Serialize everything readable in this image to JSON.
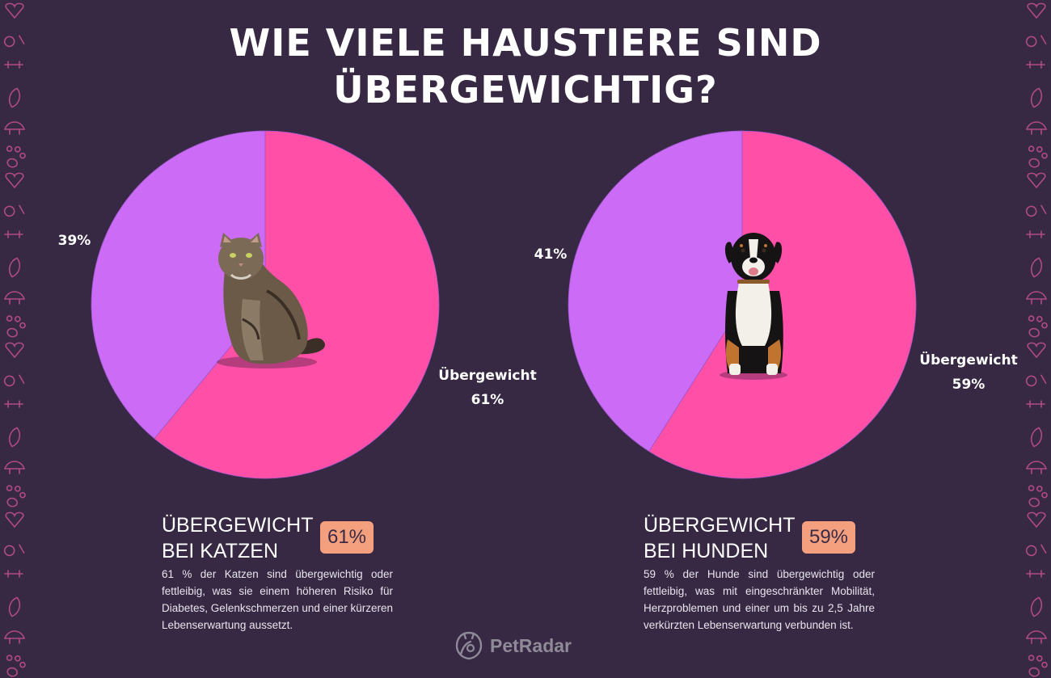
{
  "title": {
    "line1": "WIE VIELE HAUSTIERE SIND",
    "line2": "ÜBERGEWICHTIG?"
  },
  "colors": {
    "overweight": "#ff4fa7",
    "normal": "#cc6bf5",
    "badge": "#f4a07f",
    "background": "#372844"
  },
  "chart_data": [
    {
      "type": "pie",
      "slices": [
        {
          "label": "Übergewicht",
          "value": 61,
          "value_label": "61%",
          "color": "#ff4fa7"
        },
        {
          "label": "",
          "value": 39,
          "value_label": "39%",
          "color": "#cc6bf5"
        }
      ],
      "center_image": "cat-photo"
    },
    {
      "type": "pie",
      "slices": [
        {
          "label": "Übergewicht",
          "value": 59,
          "value_label": "59%",
          "color": "#ff4fa7"
        },
        {
          "label": "",
          "value": 41,
          "value_label": "41%",
          "color": "#cc6bf5"
        }
      ],
      "center_image": "dog-photo"
    }
  ],
  "blocks": [
    {
      "title_line1": "ÜBERGEWICHT",
      "title_line2": "BEI KATZEN",
      "badge": "61%",
      "text": "61 % der Katzen sind übergewichtig oder fettleibig, was sie einem höheren Risiko für Diabetes, Gelenkschmerzen und einer kürzeren Lebenserwartung aussetzt."
    },
    {
      "title_line1": "ÜBERGEWICHT",
      "title_line2": "BEI HUNDEN",
      "badge": "59%",
      "text": "59 % der Hunde sind übergewichtig oder fettleibig, was mit eingeschränkter Mobilität, Herzproblemen und einer um bis zu 2,5 Jahre verkürzten Lebenserwartung verbunden ist."
    }
  ],
  "logo": {
    "text": "PetRadar",
    "icon": "petradar-logo-icon"
  }
}
